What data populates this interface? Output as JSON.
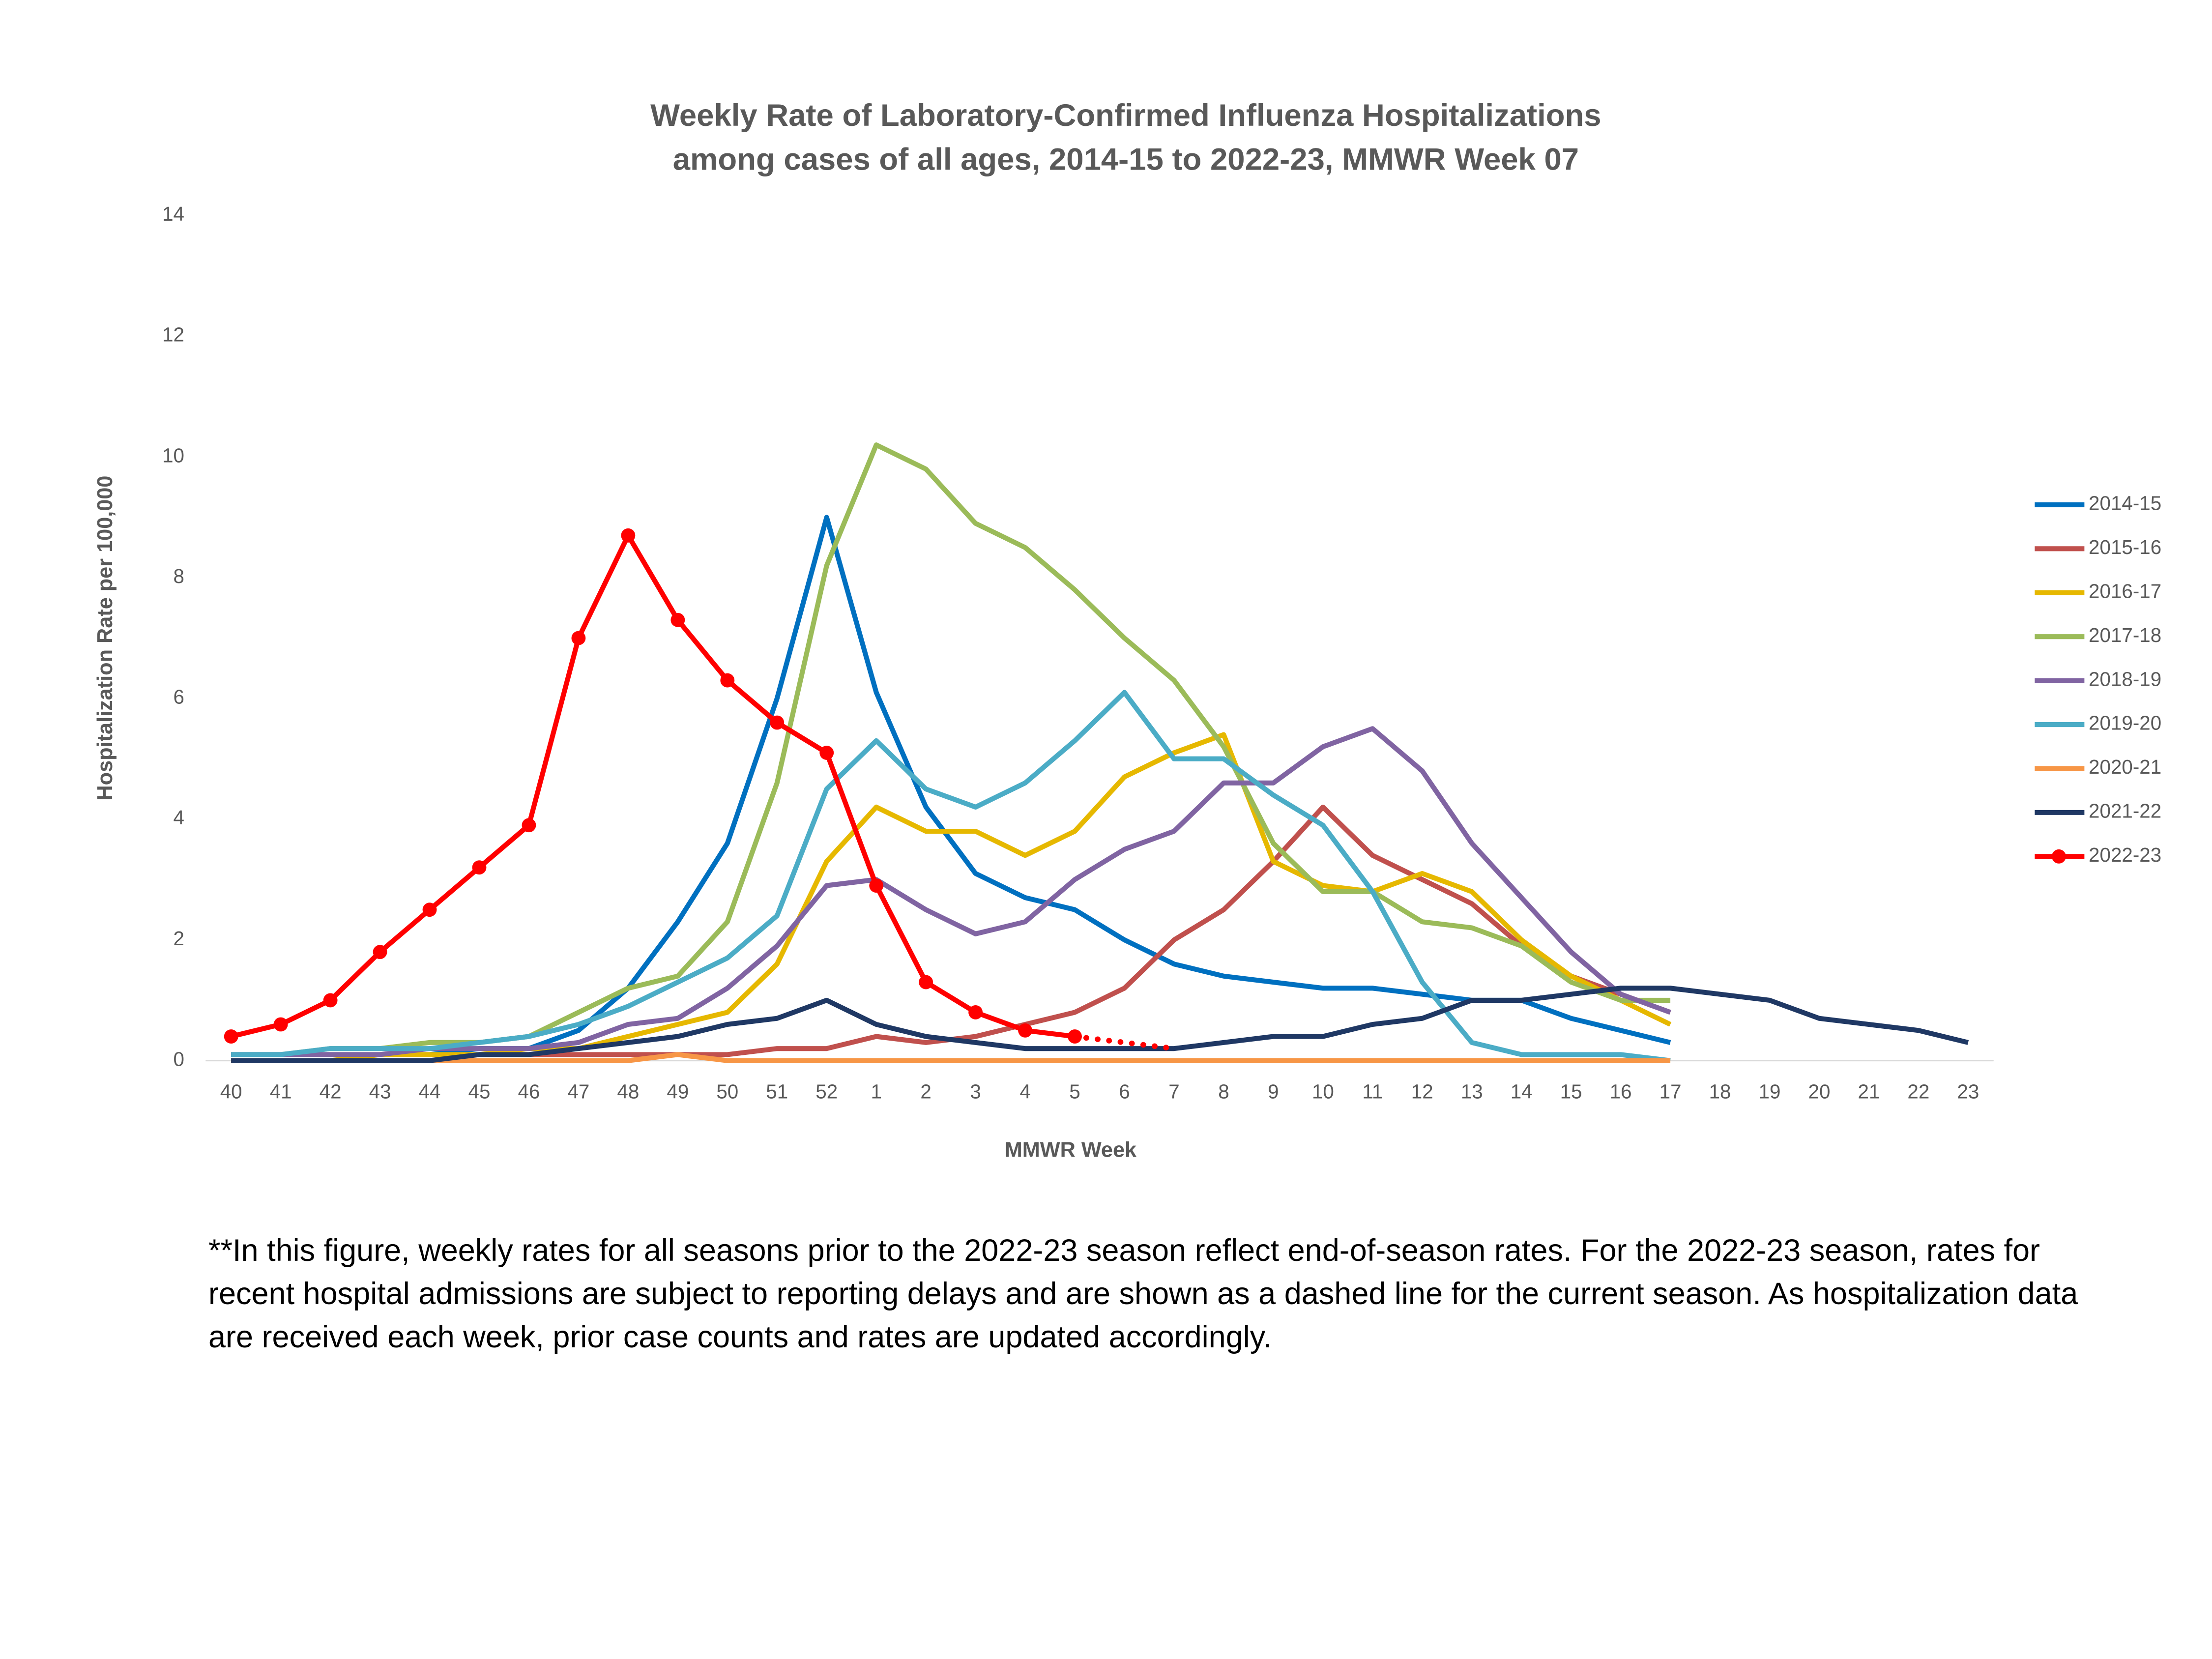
{
  "chart_data": {
    "type": "line",
    "title": [
      "Weekly Rate of Laboratory-Confirmed Influenza Hospitalizations",
      "among cases of all ages, 2014-15 to 2022-23, MMWR  Week 07"
    ],
    "x_label": "MMWR Week",
    "y_label": "Hospitalization Rate per 100,000",
    "note": "**In this figure, weekly rates for all seasons prior to the 2022-23 season reflect end-of-season rates. For the 2022-23 season, rates for recent hospital admissions are subject to reporting delays and are shown as a dashed line for the current season. As hospitalization data are received each week, prior case counts and rates are updated accordingly.",
    "categories": [
      "40",
      "41",
      "42",
      "43",
      "44",
      "45",
      "46",
      "47",
      "48",
      "49",
      "50",
      "51",
      "52",
      "1",
      "2",
      "3",
      "4",
      "5",
      "6",
      "7",
      "8",
      "9",
      "10",
      "11",
      "12",
      "13",
      "14",
      "15",
      "16",
      "17",
      "18",
      "19",
      "20",
      "21",
      "22",
      "23"
    ],
    "ylim": [
      0,
      14
    ],
    "yticks": [
      0,
      2,
      4,
      6,
      8,
      10,
      12,
      14
    ],
    "grid": false,
    "legend": "right",
    "series": [
      {
        "name": "2014-15",
        "color": "#0070c0",
        "values": [
          0.1,
          0.1,
          0.1,
          0.1,
          0.1,
          0.2,
          0.2,
          0.5,
          1.2,
          2.3,
          3.6,
          6.0,
          9.0,
          6.1,
          4.2,
          3.1,
          2.7,
          2.5,
          2.0,
          1.6,
          1.4,
          1.3,
          1.2,
          1.2,
          1.1,
          1.0,
          1.0,
          0.7,
          0.5,
          0.3,
          null,
          null,
          null,
          null,
          null,
          null
        ]
      },
      {
        "name": "2015-16",
        "color": "#c0504d",
        "values": [
          0,
          0,
          0,
          0,
          0,
          0.1,
          0.1,
          0.1,
          0.1,
          0.1,
          0.1,
          0.2,
          0.2,
          0.4,
          0.3,
          0.4,
          0.6,
          0.8,
          1.2,
          2.0,
          2.5,
          3.3,
          4.2,
          3.4,
          3.0,
          2.6,
          1.9,
          1.4,
          1.1,
          0.8,
          null,
          null,
          null,
          null,
          null,
          null
        ]
      },
      {
        "name": "2016-17",
        "color": "#e6b800",
        "values": [
          0,
          0,
          0,
          0.1,
          0.1,
          0.1,
          0.2,
          0.2,
          0.4,
          0.6,
          0.8,
          1.6,
          3.3,
          4.2,
          3.8,
          3.8,
          3.4,
          3.8,
          4.7,
          5.1,
          5.4,
          3.3,
          2.9,
          2.8,
          3.1,
          2.8,
          2.0,
          1.4,
          1.0,
          0.6,
          null,
          null,
          null,
          null,
          null,
          null
        ]
      },
      {
        "name": "2017-18",
        "color": "#9bbb59",
        "values": [
          0.1,
          0.1,
          0.2,
          0.2,
          0.3,
          0.3,
          0.4,
          0.8,
          1.2,
          1.4,
          2.3,
          4.6,
          8.2,
          10.2,
          9.8,
          8.9,
          8.5,
          7.8,
          7.0,
          6.3,
          5.2,
          3.6,
          2.8,
          2.8,
          2.3,
          2.2,
          1.9,
          1.3,
          1.0,
          1.0,
          null,
          null,
          null,
          null,
          null,
          null
        ]
      },
      {
        "name": "2018-19",
        "color": "#8064a2",
        "values": [
          0.1,
          0.1,
          0.1,
          0.1,
          0.2,
          0.2,
          0.2,
          0.3,
          0.6,
          0.7,
          1.2,
          1.9,
          2.9,
          3.0,
          2.5,
          2.1,
          2.3,
          3.0,
          3.5,
          3.8,
          4.6,
          4.6,
          5.2,
          5.5,
          4.8,
          3.6,
          2.7,
          1.8,
          1.1,
          0.8,
          null,
          null,
          null,
          null,
          null,
          null
        ]
      },
      {
        "name": "2019-20",
        "color": "#4bacc6",
        "values": [
          0.1,
          0.1,
          0.2,
          0.2,
          0.2,
          0.3,
          0.4,
          0.6,
          0.9,
          1.3,
          1.7,
          2.4,
          4.5,
          5.3,
          4.5,
          4.2,
          4.6,
          5.3,
          6.1,
          5.0,
          5.0,
          4.4,
          3.9,
          2.8,
          1.3,
          0.3,
          0.1,
          0.1,
          0.1,
          0,
          null,
          null,
          null,
          null,
          null,
          null
        ]
      },
      {
        "name": "2020-21",
        "color": "#f79646",
        "values": [
          0,
          0,
          0,
          0,
          0,
          0,
          0,
          0,
          0,
          0.1,
          0,
          0,
          0,
          0,
          0,
          0,
          0,
          0,
          0,
          0,
          0,
          0,
          0,
          0,
          0,
          0,
          0,
          0,
          0,
          0,
          null,
          null,
          null,
          null,
          null,
          null
        ]
      },
      {
        "name": "2021-22",
        "color": "#1f3864",
        "values": [
          0,
          0,
          0,
          0,
          0,
          0.1,
          0.1,
          0.2,
          0.3,
          0.4,
          0.6,
          0.7,
          1.0,
          0.6,
          0.4,
          0.3,
          0.2,
          0.2,
          0.2,
          0.2,
          0.3,
          0.4,
          0.4,
          0.6,
          0.7,
          1.0,
          1.0,
          1.1,
          1.2,
          1.2,
          1.1,
          1.0,
          0.7,
          0.6,
          0.5,
          0.3
        ]
      },
      {
        "name": "2022-23",
        "color": "#ff0000",
        "marker": "circle",
        "dashed_from": "5",
        "values": [
          0.4,
          0.6,
          1.0,
          1.8,
          2.5,
          3.2,
          3.9,
          7.0,
          8.7,
          7.3,
          6.3,
          5.6,
          5.1,
          2.9,
          1.3,
          0.8,
          0.5,
          0.4,
          0.3,
          0.2,
          null,
          null,
          null,
          null,
          null,
          null,
          null,
          null,
          null,
          null,
          null,
          null,
          null,
          null,
          null,
          null
        ]
      }
    ]
  }
}
